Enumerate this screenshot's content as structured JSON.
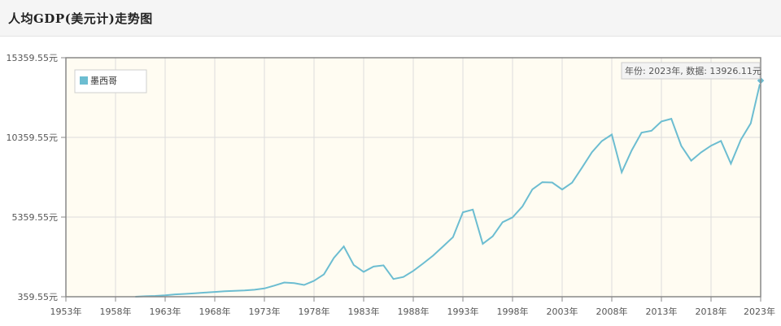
{
  "page": {
    "title": "人均GDP(美元计)走势图"
  },
  "colors": {
    "series_line": "#6cbdd1",
    "plot_bg": "#fffcf2",
    "grid": "#dcdcdc",
    "axis": "#888888"
  },
  "tooltip": {
    "text": "年份: 2023年, 数据: 13926.11元"
  },
  "chart_data": {
    "type": "line",
    "title": "人均GDP(美元计)走势图",
    "xlabel": "",
    "ylabel": "",
    "xlim": [
      1953,
      2023
    ],
    "ylim": [
      359.55,
      15359.55
    ],
    "y_ticks": [
      359.55,
      5359.55,
      10359.55,
      15359.55
    ],
    "y_tick_labels": [
      "359.55元",
      "5359.55元",
      "10359.55元",
      "15359.55元"
    ],
    "x_ticks": [
      1953,
      1958,
      1963,
      1968,
      1973,
      1978,
      1983,
      1988,
      1993,
      1998,
      2003,
      2008,
      2013,
      2018,
      2023
    ],
    "x_tick_labels": [
      "1953年",
      "1958年",
      "1963年",
      "1968年",
      "1973年",
      "1978年",
      "1983年",
      "1988年",
      "1993年",
      "1998年",
      "2003年",
      "2008年",
      "2013年",
      "2018年",
      "2023年"
    ],
    "grid": true,
    "legend_position": "top-left",
    "series": [
      {
        "name": "墨西哥",
        "x": [
          1960,
          1961,
          1962,
          1963,
          1964,
          1965,
          1966,
          1967,
          1968,
          1969,
          1970,
          1971,
          1972,
          1973,
          1974,
          1975,
          1976,
          1977,
          1978,
          1979,
          1980,
          1981,
          1982,
          1983,
          1984,
          1985,
          1986,
          1987,
          1988,
          1989,
          1990,
          1991,
          1992,
          1993,
          1994,
          1995,
          1996,
          1997,
          1998,
          1999,
          2000,
          2001,
          2002,
          2003,
          2004,
          2005,
          2006,
          2007,
          2008,
          2009,
          2010,
          2011,
          2012,
          2013,
          2014,
          2015,
          2016,
          2017,
          2018,
          2019,
          2020,
          2021,
          2022,
          2023
        ],
        "y": [
          360,
          390,
          410,
          450,
          510,
          540,
          580,
          620,
          660,
          700,
          730,
          760,
          800,
          880,
          1060,
          1250,
          1210,
          1100,
          1360,
          1770,
          2800,
          3520,
          2350,
          1920,
          2250,
          2330,
          1470,
          1600,
          1980,
          2450,
          2940,
          3520,
          4100,
          5660,
          5830,
          3680,
          4150,
          5040,
          5340,
          6030,
          7100,
          7550,
          7530,
          7090,
          7520,
          8460,
          9430,
          10130,
          10540,
          8170,
          9540,
          10660,
          10780,
          11360,
          11530,
          9830,
          8900,
          9420,
          9840,
          10140,
          8710,
          10210,
          11240,
          13926
        ]
      }
    ]
  }
}
